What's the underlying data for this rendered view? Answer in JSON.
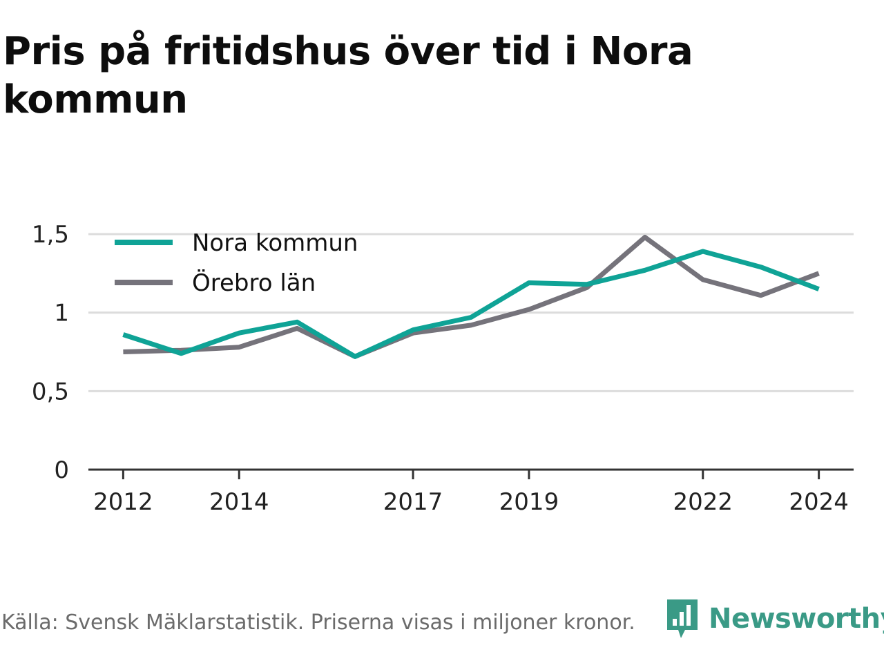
{
  "title": "Pris på fritidshus över tid i Nora kommun",
  "source": "Källa: Svensk Mäklarstatistik. Priserna visas i miljoner kronor.",
  "brand": {
    "name": "Newsworthy",
    "color": "#3a9a86",
    "icon": "newsworthy-logo-icon"
  },
  "chart_data": {
    "type": "line",
    "title": "Pris på fritidshus över tid i Nora kommun",
    "x": [
      2012,
      2013,
      2014,
      2015,
      2016,
      2017,
      2018,
      2019,
      2020,
      2021,
      2022,
      2023,
      2024
    ],
    "x_tick_values": [
      2012,
      2014,
      2017,
      2019,
      2022,
      2024
    ],
    "x_tick_labels": [
      "2012",
      "2014",
      "2017",
      "2019",
      "2022",
      "2024"
    ],
    "xlim": [
      2011.4,
      2024.6
    ],
    "ylim": [
      0,
      1.5
    ],
    "y_tick_values": [
      0,
      0.5,
      1,
      1.5
    ],
    "y_tick_labels": [
      "0",
      "0,5",
      "1",
      "1,5"
    ],
    "grid": true,
    "legend_position": "top-left",
    "series": [
      {
        "name": "Nora kommun",
        "color": "#0fa396",
        "values": [
          0.86,
          0.74,
          0.87,
          0.94,
          0.72,
          0.89,
          0.97,
          1.19,
          1.18,
          1.27,
          1.39,
          1.29,
          1.15
        ]
      },
      {
        "name": "Örebro län",
        "color": "#75737b",
        "values": [
          0.75,
          0.76,
          0.78,
          0.9,
          0.72,
          0.87,
          0.92,
          1.02,
          1.16,
          1.48,
          1.21,
          1.11,
          1.25
        ]
      }
    ]
  }
}
